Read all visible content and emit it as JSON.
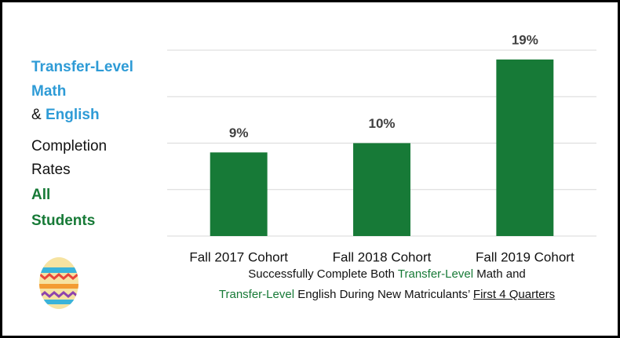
{
  "chart_data": {
    "type": "bar",
    "categories": [
      "Fall 2017 Cohort",
      "Fall 2018 Cohort",
      "Fall 2019 Cohort"
    ],
    "values": [
      9,
      10,
      19
    ],
    "value_labels": [
      "9%",
      "10%",
      "19%"
    ],
    "color": "#177a37",
    "ylim": [
      0,
      20
    ],
    "yticks": [
      0,
      5,
      10,
      15,
      20
    ],
    "grid": true
  },
  "side_label": [
    [
      {
        "text": "Transfer-Level",
        "color": "#2e9bd6",
        "bold": true
      }
    ],
    [
      {
        "text": "Math",
        "color": "#2e9bd6",
        "bold": true
      }
    ],
    [
      {
        "text": "&",
        "color": "#111111",
        "bold": false
      },
      {
        "text": "English",
        "color": "#2e9bd6",
        "bold": true
      }
    ],
    [
      {
        "text": "Completion",
        "color": "#111111",
        "bold": false
      }
    ],
    [
      {
        "text": "Rates",
        "color": "#111111",
        "bold": false
      }
    ],
    [
      {
        "text": "All",
        "color": "#177a37",
        "bold": true
      }
    ],
    [
      {
        "text": "Students",
        "color": "#177a37",
        "bold": true
      }
    ]
  ],
  "footnote": [
    [
      {
        "text": "Successfully Complete Both",
        "color": "#111111",
        "underline": false
      },
      {
        "text": "Transfer-Level",
        "color": "#177a37",
        "underline": false
      },
      {
        "text": "Math and",
        "color": "#111111",
        "underline": false
      }
    ],
    [
      {
        "text": "Transfer-Level",
        "color": "#177a37",
        "underline": false
      },
      {
        "text": "English During New Matriculants’",
        "color": "#111111",
        "underline": false
      },
      {
        "text": "First 4 Quarters",
        "color": "#111111",
        "underline": true
      }
    ]
  ]
}
